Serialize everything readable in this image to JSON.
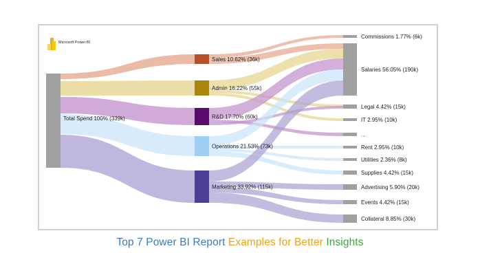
{
  "app": {
    "logo_text": "Microsoft Power BI"
  },
  "diagram": {
    "source": {
      "label": "Total Spend 100% (339k)"
    },
    "departments": [
      {
        "id": "sales",
        "label": "Sales 10.62% (36k)",
        "color": "#b5502a",
        "flow_color": "#e5a48a"
      },
      {
        "id": "admin",
        "label": "Admin 16.22% (55k)",
        "color": "#a8860b",
        "flow_color": "#e6d38a"
      },
      {
        "id": "rnd",
        "label": "R&D 17.70% (60k)",
        "color": "#5a0a6b",
        "flow_color": "#c08fca"
      },
      {
        "id": "operations",
        "label": "Operations 21.53% (73k)",
        "color": "#9ed0f5",
        "flow_color": "#c9e4f9"
      },
      {
        "id": "marketing",
        "label": "Marketing 33.92% (115k)",
        "color": "#4e3e96",
        "flow_color": "#a99fd2"
      }
    ],
    "categories": [
      {
        "id": "commissions",
        "label": "Commissions 1.77% (6k)"
      },
      {
        "id": "salaries",
        "label": "Salaries 56.05% (190k)"
      },
      {
        "id": "legal",
        "label": "Legal 4.42% (15k)"
      },
      {
        "id": "it",
        "label": "IT 2.95% (10k)"
      },
      {
        "id": "other",
        "label": "..."
      },
      {
        "id": "rent",
        "label": "Rent 2.95% (10k)"
      },
      {
        "id": "utilities",
        "label": "Utilities 2.36% (8k)"
      },
      {
        "id": "supplies",
        "label": "Supplies 4.42% (15k)"
      },
      {
        "id": "advertising",
        "label": "Advertising 5.90% (20k)"
      },
      {
        "id": "events",
        "label": "Events 4.42% (15k)"
      },
      {
        "id": "collateral",
        "label": "Collateral 8.85% (30k)"
      }
    ],
    "node_color": "#a0a0a0"
  },
  "caption": {
    "parts": [
      {
        "text": "Top 7 Power BI Report ",
        "color": "#3b78c8"
      },
      {
        "text": "Examples for Better ",
        "color": "#f0a30a"
      },
      {
        "text": "Insights",
        "color": "#3aa53a"
      }
    ]
  }
}
